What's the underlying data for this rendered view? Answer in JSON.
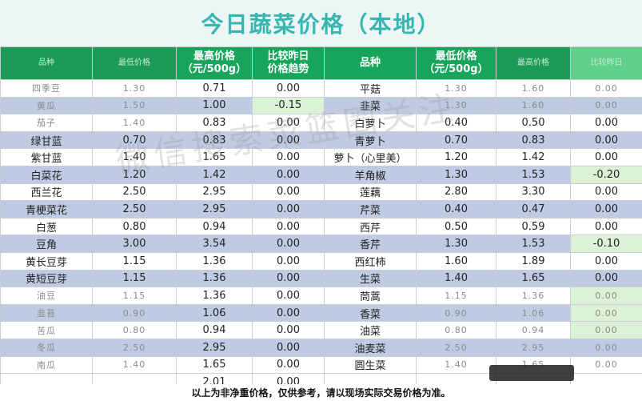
{
  "title": "今日蔬菜价格（本地）",
  "headers": {
    "col1": "品种",
    "col2": "最低价格",
    "col3": "最高价格\n（元/500g）",
    "col4": "比较昨日\n价格趋势",
    "col5": "品种",
    "col6": "最低价格\n（元/500g）",
    "col7": "最高价格",
    "col8": "比较昨日"
  },
  "rows": [
    [
      "四季豆",
      "1.30",
      "0.71",
      "0.00",
      "平菇",
      "1.30",
      "1.60",
      "0.00"
    ],
    [
      "黄瓜",
      "1.50",
      "1.00",
      "-0.15",
      "韭菜",
      "1.30",
      "1.60",
      "0.00"
    ],
    [
      "茄子",
      "1.40",
      "0.83",
      "0.00",
      "白萝卜",
      "0.40",
      "0.50",
      "0.00"
    ],
    [
      "绿甘蓝",
      "0.70",
      "0.83",
      "0.00",
      "青萝卜",
      "0.70",
      "0.83",
      "0.00"
    ],
    [
      "紫甘蓝",
      "1.40",
      "1.65",
      "0.00",
      "萝卜（心里美）",
      "1.20",
      "1.42",
      "0.00"
    ],
    [
      "白菜花",
      "1.20",
      "1.42",
      "0.00",
      "羊角椒",
      "1.30",
      "1.53",
      "-0.20"
    ],
    [
      "西兰花",
      "2.50",
      "2.95",
      "0.00",
      "莲藕",
      "2.80",
      "3.30",
      "0.00"
    ],
    [
      "青梗菜花",
      "2.50",
      "2.95",
      "0.00",
      "芹菜",
      "0.40",
      "0.47",
      "0.00"
    ],
    [
      "白葱",
      "0.80",
      "0.94",
      "0.00",
      "西芹",
      "0.50",
      "0.59",
      "0.00"
    ],
    [
      "豆角",
      "3.00",
      "3.54",
      "0.00",
      "香芹",
      "1.30",
      "1.53",
      "-0.10"
    ],
    [
      "黄长豆芽",
      "1.15",
      "1.36",
      "0.00",
      "西红柿",
      "1.60",
      "1.89",
      "0.00"
    ],
    [
      "黄短豆芽",
      "1.15",
      "1.36",
      "0.00",
      "生菜",
      "1.40",
      "1.65",
      "0.00"
    ],
    [
      "油豆",
      "1.15",
      "1.36",
      "0.00",
      "茼蒿",
      "1.15",
      "1.36",
      "0.00"
    ],
    [
      "韭苔",
      "0.90",
      "1.06",
      "0.00",
      "香菜",
      "0.90",
      "1.06",
      "0.00"
    ],
    [
      "苦瓜",
      "0.80",
      "0.94",
      "0.00",
      "油菜",
      "0.80",
      "0.94",
      "0.00"
    ],
    [
      "冬瓜",
      "2.50",
      "2.95",
      "0.00",
      "油麦菜",
      "2.50",
      "2.95",
      "0.00"
    ],
    [
      "南瓜",
      "1.40",
      "1.65",
      "0.00",
      "圆生菜",
      "1.40",
      "1.65",
      "0.00"
    ],
    [
      "",
      "",
      "2.01",
      "0.00",
      "",
      "",
      "",
      ""
    ]
  ],
  "footer": "以上为非净重价格，仅供参考，请以现场实际交易价格为准。",
  "watermark": "微信搜索菜篮圈关注"
}
